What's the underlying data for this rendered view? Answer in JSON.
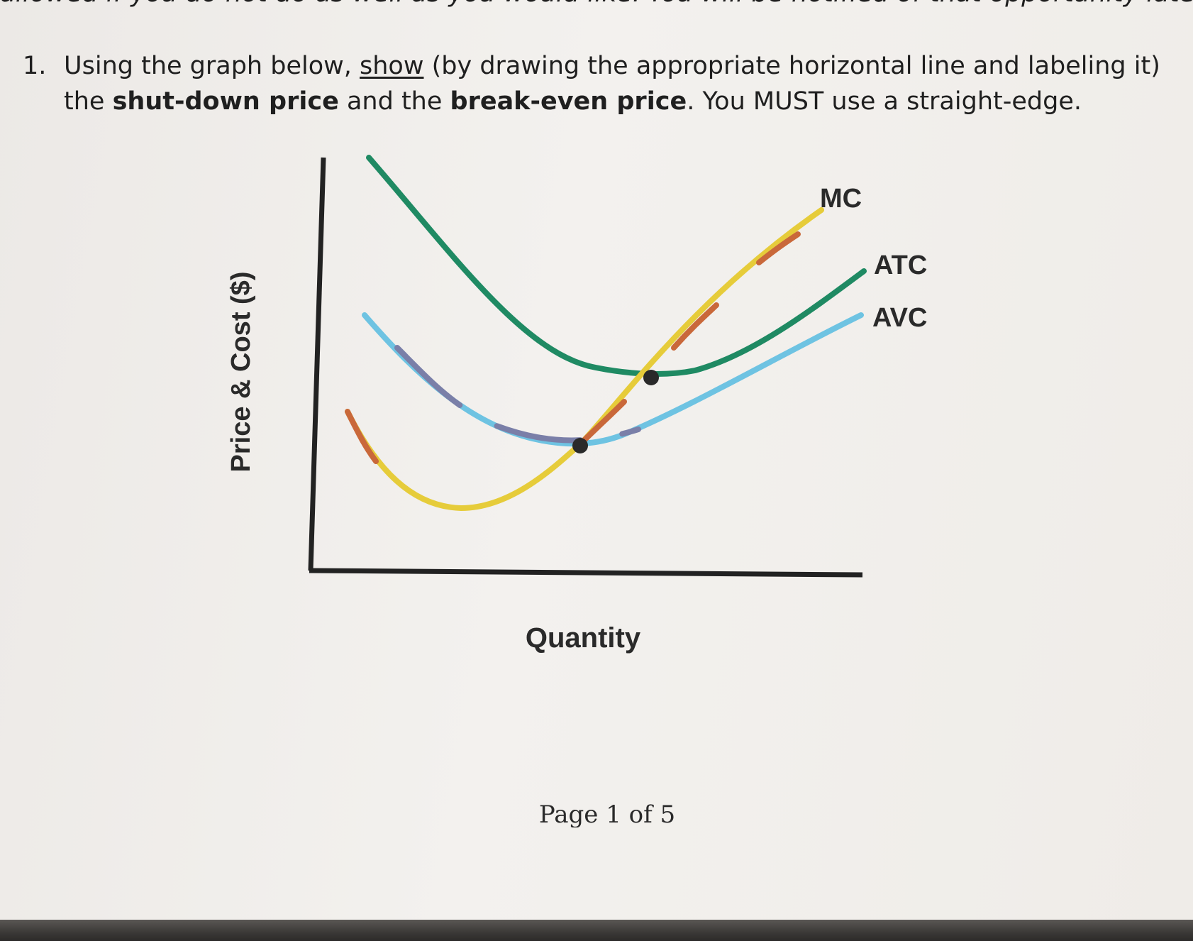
{
  "header": {
    "cut_text": "allowed if you do not do as well as you would like. You will be notified of that opportunity later."
  },
  "question": {
    "number": "1.",
    "text_1": "Using the graph below, ",
    "underlined": "show",
    "text_2": " (by drawing the appropriate horizontal line and labeling it) the ",
    "bold_1": "shut-down price",
    "text_3": " and the ",
    "bold_2": "break-even price",
    "text_4": ". You MUST use a straight-edge."
  },
  "graph": {
    "ylabel": "Price & Cost ($)",
    "xlabel": "Quantity",
    "curves": [
      {
        "name": "MC",
        "color": "#e6cc3a"
      },
      {
        "name": "ATC",
        "color": "#1f8a63"
      },
      {
        "name": "AVC",
        "color": "#6ec3e2"
      }
    ],
    "axis_color": "#222222"
  },
  "footer": {
    "page": "Page 1 of 5"
  }
}
